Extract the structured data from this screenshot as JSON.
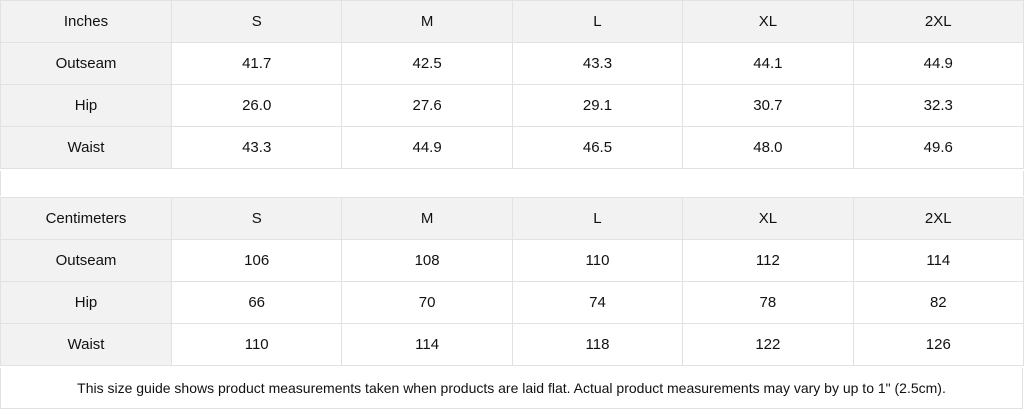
{
  "tables": [
    {
      "unit": "Inches",
      "sizes": [
        "S",
        "M",
        "L",
        "XL",
        "2XL"
      ],
      "rows": [
        {
          "label": "Outseam",
          "values": [
            "41.7",
            "42.5",
            "43.3",
            "44.1",
            "44.9"
          ]
        },
        {
          "label": "Hip",
          "values": [
            "26.0",
            "27.6",
            "29.1",
            "30.7",
            "32.3"
          ]
        },
        {
          "label": "Waist",
          "values": [
            "43.3",
            "44.9",
            "46.5",
            "48.0",
            "49.6"
          ]
        }
      ]
    },
    {
      "unit": "Centimeters",
      "sizes": [
        "S",
        "M",
        "L",
        "XL",
        "2XL"
      ],
      "rows": [
        {
          "label": "Outseam",
          "values": [
            "106",
            "108",
            "110",
            "112",
            "114"
          ]
        },
        {
          "label": "Hip",
          "values": [
            "66",
            "70",
            "74",
            "78",
            "82"
          ]
        },
        {
          "label": "Waist",
          "values": [
            "110",
            "114",
            "118",
            "122",
            "126"
          ]
        }
      ]
    }
  ],
  "note": "This size guide shows product measurements taken when products are laid flat.  Actual product measurements may vary by up to 1\" (2.5cm).",
  "colors": {
    "header_bg": "#f2f2f2",
    "border": "#e2e2e2"
  }
}
